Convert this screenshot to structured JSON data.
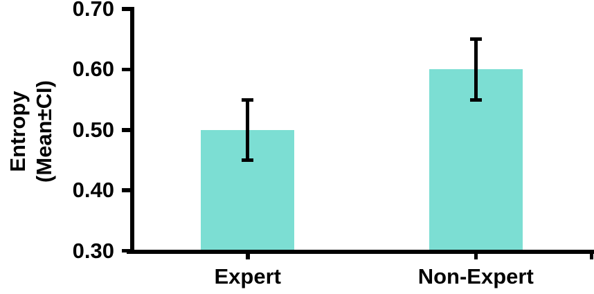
{
  "chart_data": {
    "type": "bar",
    "categories": [
      "Expert",
      "Non-Expert"
    ],
    "values": [
      0.5,
      0.6
    ],
    "errors": [
      0.05,
      0.05
    ],
    "title": "",
    "xlabel": "",
    "ylabel": "Entropy (Mean±CI)",
    "ylabel_lines": [
      "Entropy",
      "(Mean±CI)"
    ],
    "ylim": [
      0.3,
      0.7
    ],
    "yticks": [
      0.7,
      0.6,
      0.5,
      0.4,
      0.3
    ],
    "ytick_labels": [
      "0.70",
      "0.60",
      "0.50",
      "0.40",
      "0.30"
    ],
    "bar_color": "#7CDED3",
    "axis_color": "#000000",
    "error_color": "#000000",
    "grid": false,
    "legend_position": "none"
  }
}
